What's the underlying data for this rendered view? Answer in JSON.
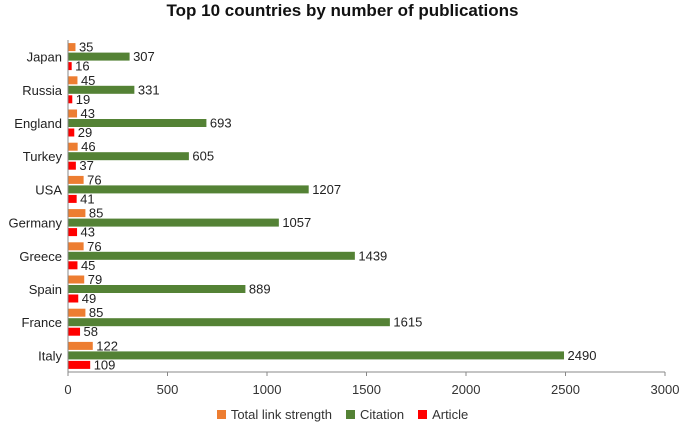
{
  "chart_data": {
    "type": "bar",
    "orientation": "horizontal",
    "title": "Top 10 countries by number of publications",
    "categories": [
      "Japan",
      "Russia",
      "England",
      "Turkey",
      "USA",
      "Germany",
      "Greece",
      "Spain",
      "France",
      "Italy"
    ],
    "series": [
      {
        "name": "Total link strength",
        "color": "#ED7D31",
        "values": [
          35,
          45,
          43,
          46,
          76,
          85,
          76,
          79,
          85,
          122
        ]
      },
      {
        "name": "Citation",
        "color": "#548235",
        "values": [
          307,
          331,
          693,
          605,
          1207,
          1057,
          1439,
          889,
          1615,
          2490
        ]
      },
      {
        "name": "Article",
        "color": "#FF0000",
        "values": [
          16,
          19,
          29,
          37,
          41,
          43,
          45,
          49,
          58,
          109
        ]
      }
    ],
    "xlim": [
      0,
      3000
    ],
    "xticks": [
      "0",
      "500",
      "1000",
      "1500",
      "2000",
      "2500",
      "3000"
    ],
    "grid": false,
    "legend_position": "bottom"
  }
}
